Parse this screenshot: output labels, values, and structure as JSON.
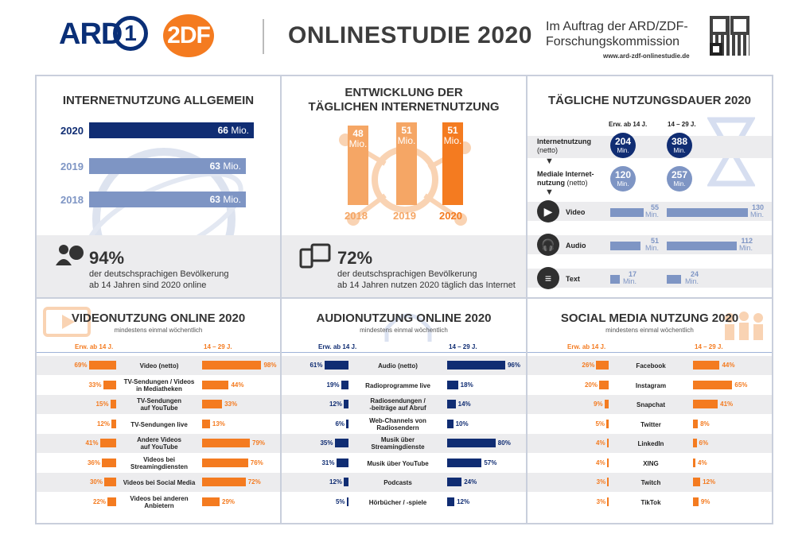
{
  "header": {
    "ard": "ARD",
    "ard_one": "1",
    "zdf": "2DF",
    "title": "ONLINESTUDIE 2020",
    "auftrag_1": "Im Auftrag der ARD/ZDF-",
    "auftrag_2": "Forschungskommission",
    "url": "www.ard-zdf-onlinestudie.de"
  },
  "p1": {
    "title": "INTERNETNUTZUNG ALLGEMEIN",
    "unit": "Mio.",
    "rows": [
      {
        "year": "2020",
        "value": "66"
      },
      {
        "year": "2019",
        "value": "63"
      },
      {
        "year": "2018",
        "value": "63"
      }
    ],
    "pct": "94%",
    "text1": "der deutschsprachigen Bevölkerung",
    "text2": "ab 14 Jahren sind 2020 online"
  },
  "p2": {
    "title1": "ENTWICKLUNG DER",
    "title2": "TÄGLICHEN INTERNETNUTZUNG",
    "unit": "Mio.",
    "bars": [
      {
        "year": "2018",
        "value": "48"
      },
      {
        "year": "2019",
        "value": "51"
      },
      {
        "year": "2020",
        "value": "51"
      }
    ],
    "pct": "72%",
    "text1": "der deutschsprachigen Bevölkerung",
    "text2": "ab 14 Jahren nutzen 2020 täglich das Internet"
  },
  "p3": {
    "title": "TÄGLICHE NUTZUNGSDAUER 2020",
    "col1": "Erw. ab 14 J.",
    "col2": "14 – 29 J.",
    "unit": "Min.",
    "internet_label": "Internetnutzung",
    "internet_sub": "(netto)",
    "internet": [
      "204",
      "388"
    ],
    "medial_label1": "Mediale Internet-",
    "medial_label2": "nutzung",
    "medial_sub": "(netto)",
    "medial": [
      "120",
      "257"
    ],
    "rows": [
      {
        "label": "Video",
        "v1": "55",
        "v2": "130"
      },
      {
        "label": "Audio",
        "v1": "51",
        "v2": "112"
      },
      {
        "label": "Text",
        "v1": "17",
        "v2": "24"
      }
    ]
  },
  "p4": {
    "title": "VIDEONUTZUNG ONLINE 2020",
    "sub": "mindestens einmal wöchentlich",
    "col1": "Erw. ab 14 J.",
    "col2": "14 – 29 J.",
    "rows": [
      {
        "l1": "Video (netto)",
        "l2": "",
        "a": 69,
        "b": 98
      },
      {
        "l1": "TV-Sendungen / Videos",
        "l2": "in Mediatheken",
        "a": 33,
        "b": 44
      },
      {
        "l1": "TV-Sendungen",
        "l2": "auf YouTube",
        "a": 15,
        "b": 33
      },
      {
        "l1": "TV-Sendungen live",
        "l2": "",
        "a": 12,
        "b": 13
      },
      {
        "l1": "Andere Videos",
        "l2": "auf YouTube",
        "a": 41,
        "b": 79
      },
      {
        "l1": "Videos bei",
        "l2": "Streamingdiensten",
        "a": 36,
        "b": 76
      },
      {
        "l1": "Videos bei Social Media",
        "l2": "",
        "a": 30,
        "b": 72
      },
      {
        "l1": "Videos bei anderen",
        "l2": "Anbietern",
        "a": 22,
        "b": 29
      }
    ]
  },
  "p5": {
    "title": "AUDIONUTZUNG ONLINE 2020",
    "sub": "mindestens einmal wöchentlich",
    "col1": "Erw. ab 14 J.",
    "col2": "14 – 29 J.",
    "rows": [
      {
        "l1": "Audio (netto)",
        "l2": "",
        "a": 61,
        "b": 96
      },
      {
        "l1": "Radioprogramme live",
        "l2": "",
        "a": 19,
        "b": 18
      },
      {
        "l1": "Radiosendungen /",
        "l2": "-beiträge auf Abruf",
        "a": 12,
        "b": 14
      },
      {
        "l1": "Web-Channels von",
        "l2": "Radiosendern",
        "a": 6,
        "b": 10
      },
      {
        "l1": "Musik über",
        "l2": "Streamingdienste",
        "a": 35,
        "b": 80
      },
      {
        "l1": "Musik über YouTube",
        "l2": "",
        "a": 31,
        "b": 57
      },
      {
        "l1": "Podcasts",
        "l2": "",
        "a": 12,
        "b": 24
      },
      {
        "l1": "Hörbücher / -spiele",
        "l2": "",
        "a": 5,
        "b": 12
      }
    ]
  },
  "p6": {
    "title": "SOCIAL MEDIA NUTZUNG 2020",
    "sub": "mindestens einmal wöchentlich",
    "col1": "Erw. ab 14 J.",
    "col2": "14 – 29 J.",
    "rows": [
      {
        "l1": "Facebook",
        "l2": "",
        "a": 26,
        "b": 44
      },
      {
        "l1": "Instagram",
        "l2": "",
        "a": 20,
        "b": 65
      },
      {
        "l1": "Snapchat",
        "l2": "",
        "a": 9,
        "b": 41
      },
      {
        "l1": "Twitter",
        "l2": "",
        "a": 5,
        "b": 8
      },
      {
        "l1": "LinkedIn",
        "l2": "",
        "a": 4,
        "b": 6
      },
      {
        "l1": "XING",
        "l2": "",
        "a": 4,
        "b": 4
      },
      {
        "l1": "Twitch",
        "l2": "",
        "a": 3,
        "b": 12
      },
      {
        "l1": "TikTok",
        "l2": "",
        "a": 3,
        "b": 9
      }
    ]
  },
  "colors": {
    "navy": "#102d73",
    "light_blue": "#7e95c4",
    "orange": "#f47b20",
    "light_orange": "#f5a665"
  }
}
